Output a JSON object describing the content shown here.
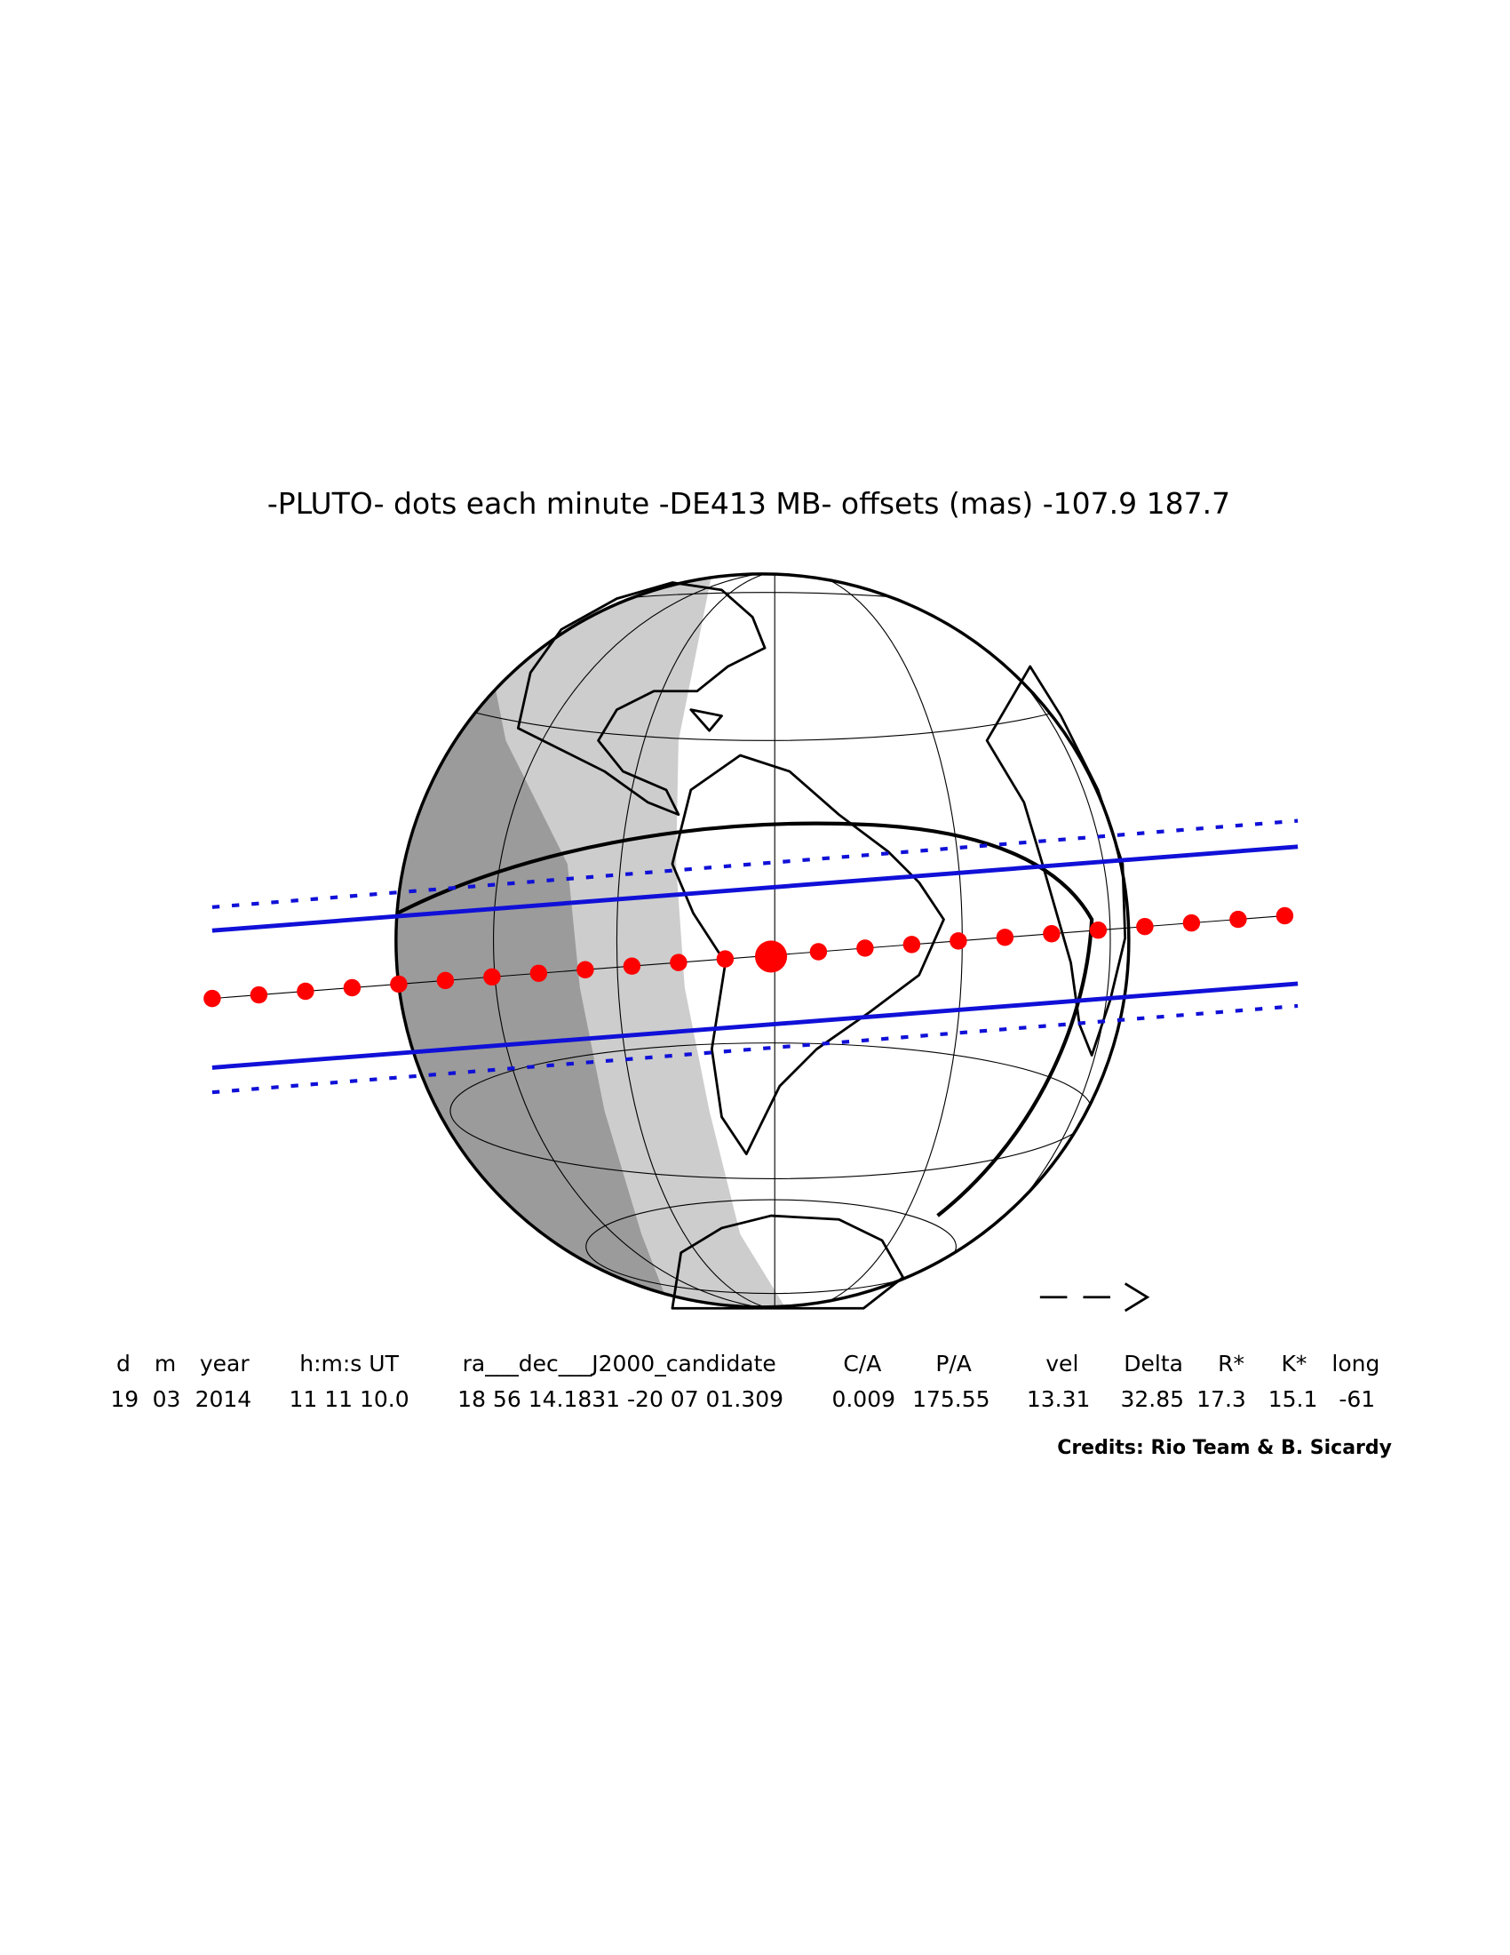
{
  "title": "-PLUTO- dots each minute -DE413 MB- offsets (mas) -107.9   187.7",
  "table": {
    "header": [
      "d",
      "m",
      "year",
      "h:m:s UT",
      "ra___dec___J2000_candidate",
      "C/A",
      "P/A",
      "vel",
      "Delta",
      "R*",
      "K*",
      "long"
    ],
    "values": [
      "19",
      "03",
      "2014",
      "11 11 10.0",
      "18 56 14.1831 -20 07 01.309",
      "0.009",
      "175.55",
      "13.31",
      "32.85",
      "17.3",
      "15.1",
      "-61"
    ]
  },
  "credits": "Credits: Rio Team & B. Sicardy"
}
